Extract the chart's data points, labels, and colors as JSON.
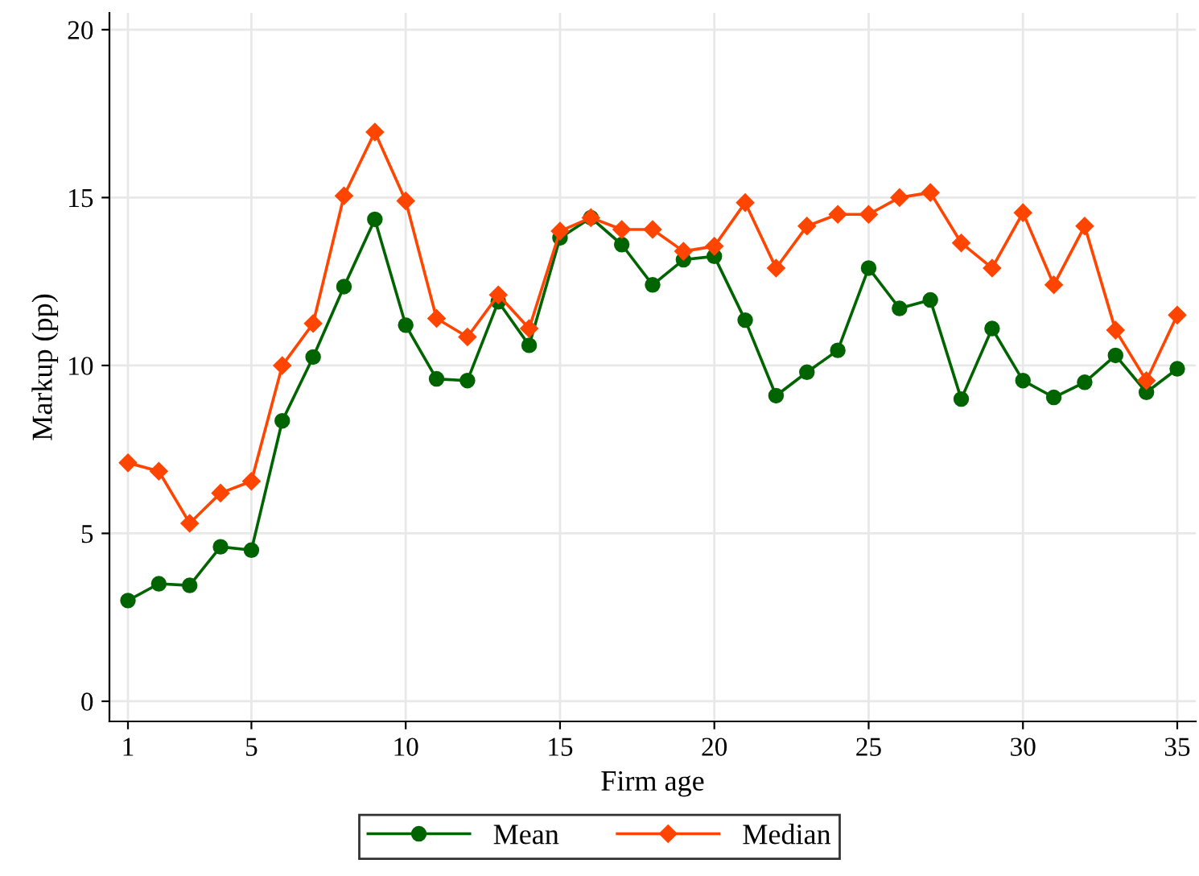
{
  "chart_data": {
    "type": "line",
    "xlabel": "Firm age",
    "ylabel": "Markup (pp)",
    "x": [
      1,
      2,
      3,
      4,
      5,
      6,
      7,
      8,
      9,
      10,
      11,
      12,
      13,
      14,
      15,
      16,
      17,
      18,
      19,
      20,
      21,
      22,
      23,
      24,
      25,
      26,
      27,
      28,
      29,
      30,
      31,
      32,
      33,
      34,
      35
    ],
    "series": [
      {
        "name": "Mean",
        "color": "#006400",
        "marker": "circle",
        "values": [
          3.0,
          3.5,
          3.45,
          4.6,
          4.5,
          8.35,
          10.25,
          12.35,
          14.35,
          11.2,
          9.6,
          9.55,
          11.9,
          10.6,
          13.8,
          14.4,
          13.6,
          12.4,
          13.15,
          13.25,
          11.35,
          9.1,
          9.8,
          10.45,
          12.9,
          11.7,
          11.95,
          9.0,
          11.1,
          9.55,
          9.05,
          9.5,
          10.3,
          9.2,
          9.9
        ]
      },
      {
        "name": "Median",
        "color": "#ff4500",
        "marker": "diamond",
        "values": [
          7.1,
          6.85,
          5.3,
          6.2,
          6.55,
          10.0,
          11.25,
          15.05,
          16.95,
          14.9,
          11.4,
          10.85,
          12.1,
          11.1,
          14.0,
          14.4,
          14.05,
          14.05,
          13.4,
          13.55,
          14.85,
          12.9,
          14.15,
          14.5,
          14.5,
          15.0,
          15.15,
          13.65,
          12.9,
          14.55,
          12.4,
          14.15,
          11.05,
          9.55,
          11.5
        ]
      }
    ],
    "xlim": [
      0.4,
      35.6
    ],
    "xticks": [
      1,
      5,
      10,
      15,
      20,
      25,
      30,
      35
    ],
    "ylim": [
      -0.6,
      20.5
    ],
    "yticks": [
      0,
      5,
      10,
      15,
      20
    ],
    "grid": true,
    "legend": "bottom",
    "line_style": "solid"
  }
}
